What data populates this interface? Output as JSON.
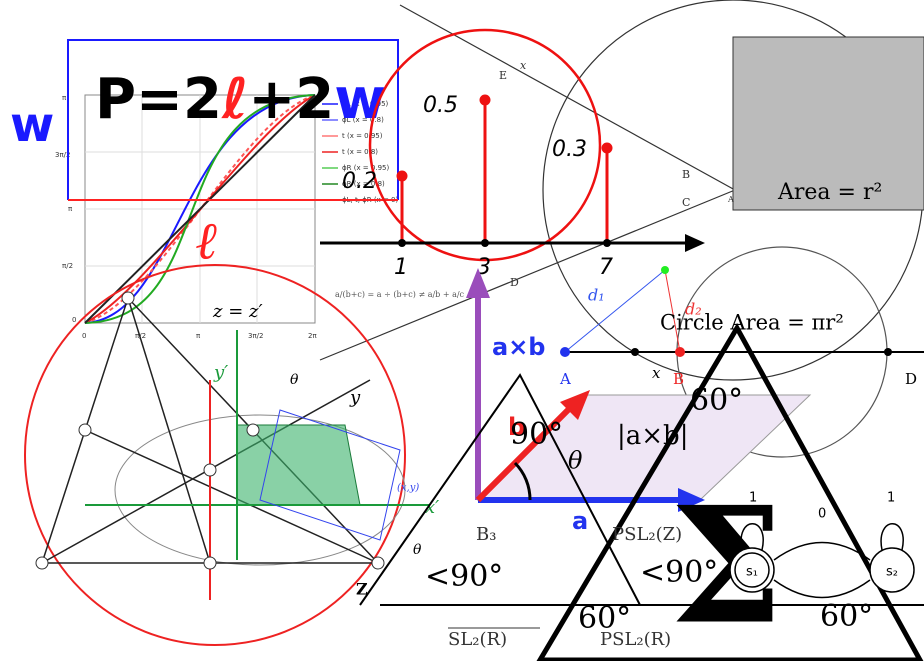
{
  "perimeter": {
    "w_left": "w",
    "p_part": "P=2",
    "ell_part": "ℓ",
    "plus_part": "+2",
    "w_part": "w",
    "ell_label": "ℓ"
  },
  "plot_legend": [
    "ϕL (x = 0.95)",
    "ϕL (x = 0.8)",
    "t (x = 0.95)",
    "t (x = 0.8)",
    "ϕR (x = 0.95)",
    "ϕR (x = 0.8)",
    "ϕL, t, ϕR (x = 0)"
  ],
  "plot_axis": {
    "y_ticks": [
      "π",
      "3π/2",
      "π",
      "π/2",
      "0"
    ],
    "x_ticks": [
      "0",
      "π/2",
      "π",
      "3π/2",
      "2π"
    ]
  },
  "stems": {
    "heights": [
      "0.2",
      "0.5",
      "0.3"
    ],
    "positions": [
      "1",
      "3",
      "7"
    ]
  },
  "fraction_note": "a/(b+c) = a ÷ (b+c) ≠ a/b + a/c",
  "circle_labels": {
    "e": "E",
    "x": "x",
    "b": "B",
    "c": "C",
    "a": "A",
    "d": "D",
    "d1": "d₁",
    "d2": "d₂"
  },
  "area": "Area = r²",
  "circle_area": "Circle Area = πr²",
  "cross": {
    "ab": "a×b",
    "abs": "|a×b|",
    "a": "a",
    "b": "b",
    "theta": "θ"
  },
  "segment": {
    "a": "A",
    "b": "B",
    "d": "D",
    "x": "x"
  },
  "rotation": {
    "z": "z = z′",
    "yp": "y′",
    "xp": "x′",
    "y": "y",
    "theta": "θ",
    "xy": "(x,y)"
  },
  "angles": {
    "sixty_top": "60°",
    "ninety": "90°",
    "lt90_left": "<90°",
    "lt90_right": "<90°",
    "sixty_left": "60°",
    "sixty_right": "60°",
    "theta": "θ",
    "z": "Z"
  },
  "groups": {
    "b3": "B₃",
    "psl2z": "PSL₂(Z)",
    "sl2r": "SL₂(R)",
    "psl2r": "PSL₂(R)"
  },
  "sigma": "Σ",
  "markov": {
    "s1": "s₁",
    "s2": "s₂",
    "loop1": "1",
    "loop2": "1",
    "edge": "0"
  }
}
